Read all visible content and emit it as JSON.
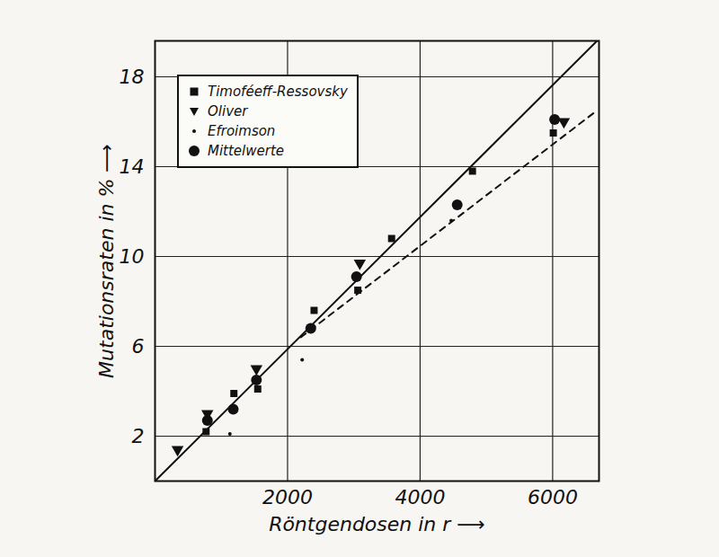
{
  "chart_data": {
    "type": "scatter",
    "x_label": "Röntgendosen in r ⟶",
    "y_label": "Mutationsraten in % ⟶",
    "xlim": [
      0,
      6700
    ],
    "ylim": [
      0,
      19.6
    ],
    "xticks": [
      2000,
      4000,
      6000
    ],
    "yticks": [
      2,
      6,
      10,
      14,
      18
    ],
    "grid": true,
    "legend": "upper left",
    "series": [
      {
        "name": "Timoféeff-Ressovsky",
        "type": "scatter",
        "marker": "square",
        "color": "#111111",
        "x": [
          770,
          1190,
          1550,
          2400,
          3060,
          3570,
          4790,
          6010
        ],
        "values": [
          2.2,
          3.9,
          4.1,
          7.6,
          8.5,
          10.8,
          13.8,
          15.5
        ]
      },
      {
        "name": "Oliver",
        "type": "scatter",
        "marker": "triangle_down",
        "color": "#111111",
        "x": [
          340,
          790,
          1530,
          3090,
          6170
        ],
        "values": [
          1.4,
          3.0,
          5.0,
          9.7,
          16.0
        ]
      },
      {
        "name": "Efroimson",
        "type": "scatter",
        "marker": "dot",
        "color": "#111111",
        "x": [
          1130,
          2220,
          4470
        ],
        "values": [
          2.1,
          5.4,
          11.6
        ]
      },
      {
        "name": "Mittelwerte",
        "type": "scatter",
        "marker": "circle",
        "color": "#111111",
        "x": [
          790,
          1180,
          1530,
          2350,
          3040,
          4560,
          6030
        ],
        "values": [
          2.7,
          3.2,
          4.5,
          6.8,
          9.1,
          12.3,
          16.1
        ]
      },
      {
        "type": "line",
        "line_style": "solid",
        "color": "#111111",
        "x": [
          0,
          6670
        ],
        "values": [
          0,
          19.6
        ]
      },
      {
        "type": "line",
        "line_style": "dashed",
        "color": "#111111",
        "x": [
          2200,
          6670
        ],
        "values": [
          6.4,
          16.5
        ]
      }
    ]
  }
}
